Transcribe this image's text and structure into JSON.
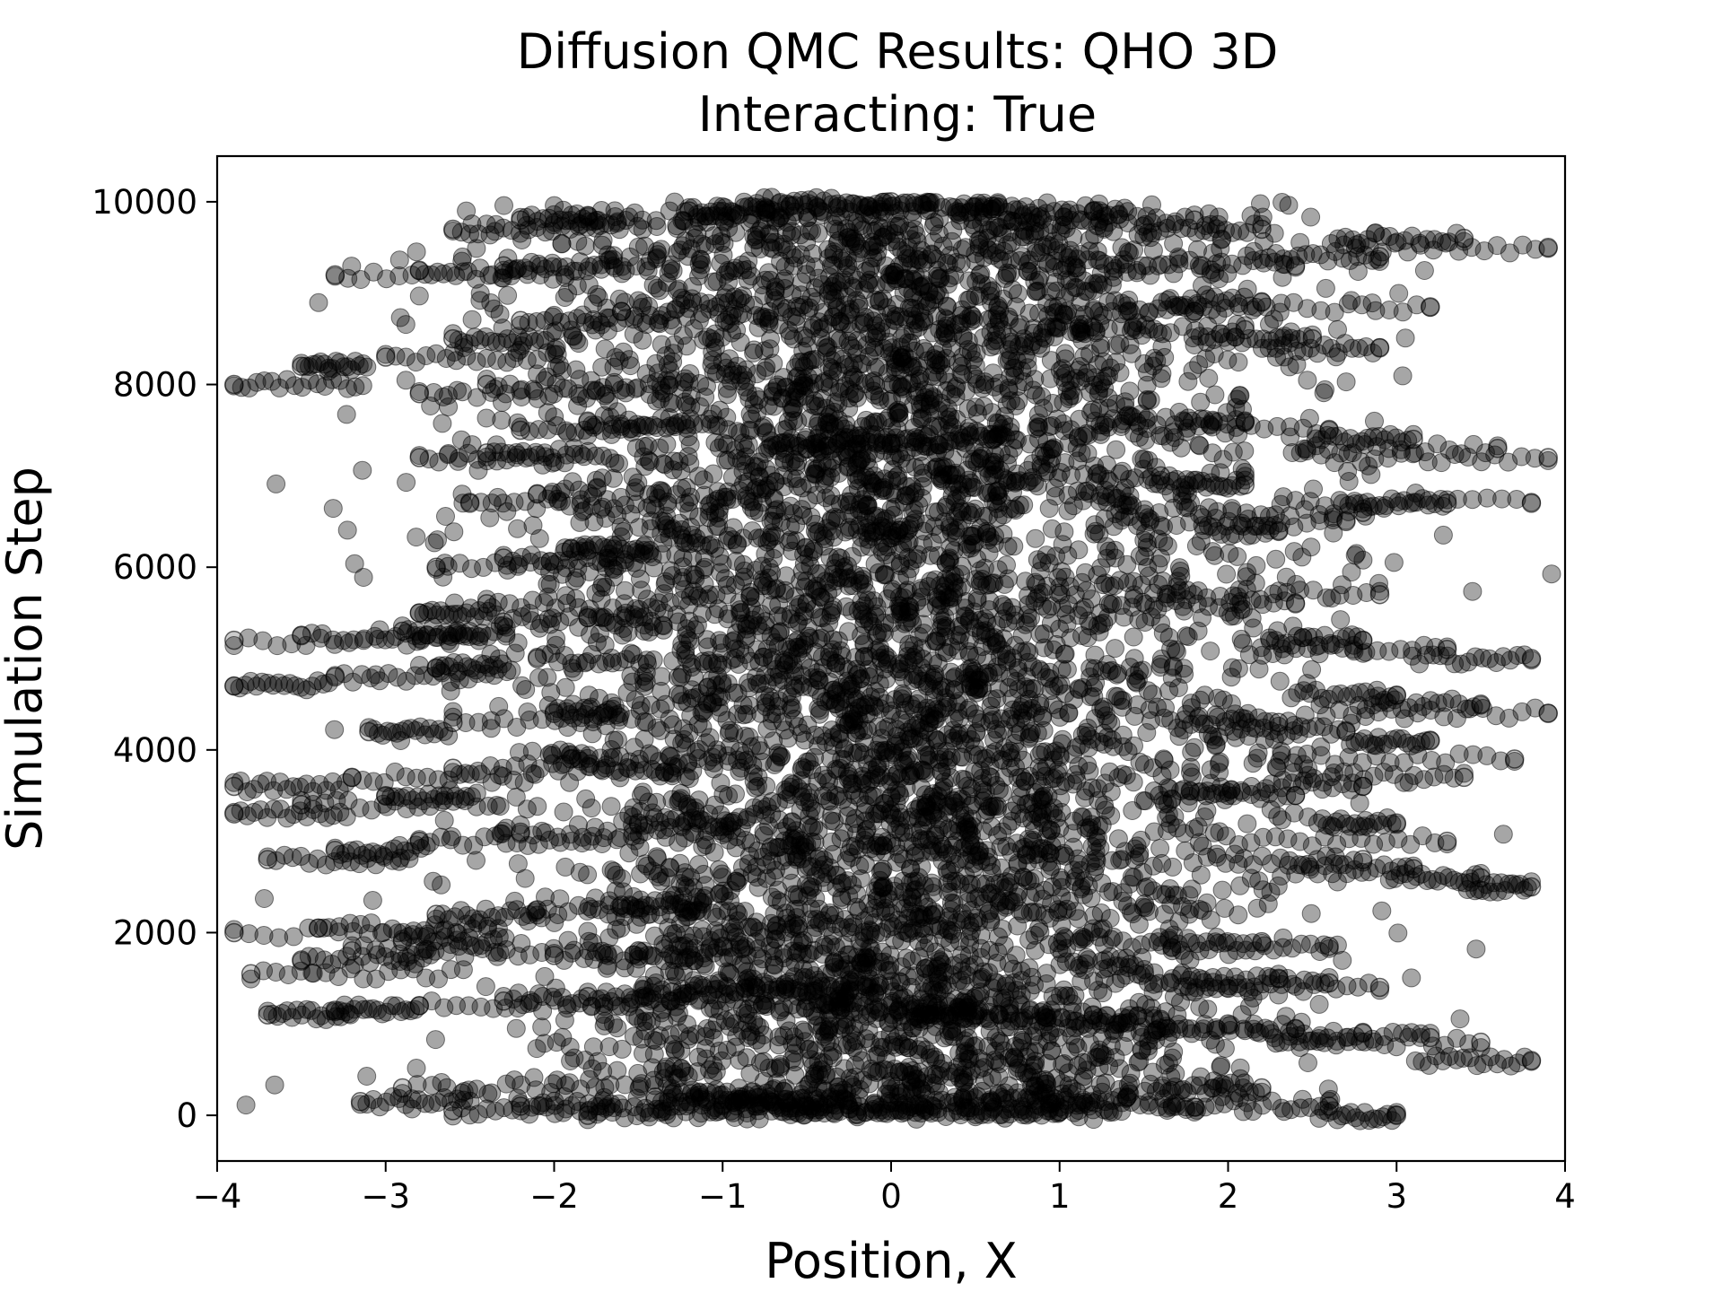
{
  "chart_data": {
    "type": "scatter",
    "title": "Diffusion QMC Results: QHO 3D",
    "subtitle": "Interacting: True",
    "xlabel": "Position, X",
    "ylabel": "Simulation Step",
    "xlim": [
      -4,
      4
    ],
    "ylim": [
      -500,
      10500
    ],
    "xticks": [
      -4,
      -3,
      -2,
      -1,
      0,
      1,
      2,
      3,
      4
    ],
    "xtick_labels": [
      "−4",
      "−3",
      "−2",
      "−1",
      "0",
      "1",
      "2",
      "3",
      "4"
    ],
    "yticks": [
      0,
      2000,
      4000,
      6000,
      8000,
      10000
    ],
    "ytick_labels": [
      "0",
      "2000",
      "4000",
      "6000",
      "8000",
      "10000"
    ],
    "grid": false,
    "marker": "circle",
    "marker_color": "#000000",
    "marker_alpha": 0.2,
    "series": [
      {
        "points": [
          [
            -3.15,
            150
          ],
          [
            -2.9,
            300
          ],
          [
            -2.6,
            50
          ],
          [
            -2.2,
            100
          ],
          [
            -1.8,
            0
          ],
          [
            -1.4,
            200
          ],
          [
            -1.0,
            120
          ],
          [
            -0.6,
            80
          ],
          [
            -0.2,
            10
          ],
          [
            0.2,
            60
          ],
          [
            0.6,
            150
          ],
          [
            1.0,
            40
          ],
          [
            1.4,
            200
          ],
          [
            1.8,
            90
          ],
          [
            2.2,
            300
          ],
          [
            2.6,
            100
          ],
          [
            3.0,
            0
          ],
          [
            3.8,
            600
          ],
          [
            3.5,
            800
          ],
          [
            3.2,
            850
          ],
          [
            2.8,
            900
          ],
          [
            2.4,
            950
          ],
          [
            2.0,
            1000
          ],
          [
            1.6,
            1050
          ],
          [
            1.2,
            1100
          ],
          [
            -3.7,
            1100
          ],
          [
            -3.3,
            1150
          ],
          [
            -2.8,
            1200
          ],
          [
            -2.3,
            1250
          ],
          [
            -1.8,
            1300
          ],
          [
            -1.3,
            1350
          ],
          [
            -0.8,
            1400
          ],
          [
            2.9,
            1400
          ],
          [
            2.6,
            1450
          ],
          [
            2.3,
            1500
          ],
          [
            -3.8,
            1550
          ],
          [
            -3.5,
            1700
          ],
          [
            -3.2,
            1800
          ],
          [
            -2.9,
            1900
          ],
          [
            -2.0,
            1750
          ],
          [
            -1.5,
            1800
          ],
          [
            2.6,
            1850
          ],
          [
            2.2,
            1900
          ],
          [
            -3.9,
            2000
          ],
          [
            -3.4,
            2050
          ],
          [
            -2.7,
            2200
          ],
          [
            -2.1,
            2250
          ],
          [
            -1.6,
            2300
          ],
          [
            3.8,
            2500
          ],
          [
            3.5,
            2600
          ],
          [
            3.1,
            2700
          ],
          [
            2.8,
            2800
          ],
          [
            -3.7,
            2800
          ],
          [
            -3.3,
            2900
          ],
          [
            -2.8,
            3000
          ],
          [
            -2.2,
            3100
          ],
          [
            -1.5,
            3200
          ],
          [
            3.3,
            3000
          ],
          [
            3.0,
            3200
          ],
          [
            -3.9,
            3300
          ],
          [
            -3.5,
            3400
          ],
          [
            -3.0,
            3500
          ],
          [
            2.4,
            3500
          ],
          [
            2.8,
            3600
          ],
          [
            3.4,
            3700
          ],
          [
            -3.9,
            3600
          ],
          [
            -3.2,
            3700
          ],
          [
            -2.6,
            3800
          ],
          [
            -1.9,
            3900
          ],
          [
            3.7,
            3900
          ],
          [
            3.2,
            4100
          ],
          [
            2.7,
            4200
          ],
          [
            2.3,
            4300
          ],
          [
            -3.1,
            4200
          ],
          [
            -2.6,
            4300
          ],
          [
            -2.0,
            4400
          ],
          [
            3.9,
            4400
          ],
          [
            3.5,
            4500
          ],
          [
            3.0,
            4600
          ],
          [
            -3.9,
            4700
          ],
          [
            -3.3,
            4800
          ],
          [
            -2.7,
            4900
          ],
          [
            -2.1,
            5000
          ],
          [
            3.8,
            5000
          ],
          [
            3.3,
            5100
          ],
          [
            2.8,
            5200
          ],
          [
            -3.9,
            5200
          ],
          [
            -3.5,
            5250
          ],
          [
            -2.9,
            5300
          ],
          [
            -2.3,
            5400
          ],
          [
            -1.8,
            5450
          ],
          [
            2.4,
            5600
          ],
          [
            2.9,
            5700
          ],
          [
            -2.8,
            5500
          ],
          [
            -2.4,
            5600
          ],
          [
            -2.7,
            6000
          ],
          [
            -2.3,
            6100
          ],
          [
            -1.9,
            6200
          ],
          [
            2.3,
            6400
          ],
          [
            2.7,
            6500
          ],
          [
            -2.5,
            6700
          ],
          [
            -2.1,
            6800
          ],
          [
            2.8,
            6600
          ],
          [
            3.3,
            6700
          ],
          [
            3.8,
            6700
          ],
          [
            2.1,
            6900
          ],
          [
            1.6,
            7000
          ],
          [
            -2.8,
            7200
          ],
          [
            -2.4,
            7250
          ],
          [
            3.9,
            7200
          ],
          [
            3.6,
            7300
          ],
          [
            3.1,
            7400
          ],
          [
            2.6,
            7500
          ],
          [
            2.1,
            7600
          ],
          [
            -2.2,
            7500
          ],
          [
            -1.8,
            7600
          ],
          [
            -2.8,
            7900
          ],
          [
            -2.4,
            8000
          ],
          [
            2.9,
            8400
          ],
          [
            2.5,
            8500
          ],
          [
            2.1,
            8600
          ],
          [
            -3.9,
            8000
          ],
          [
            -3.5,
            8200
          ],
          [
            -3.0,
            8300
          ],
          [
            -2.6,
            8500
          ],
          [
            -2.2,
            8700
          ],
          [
            -1.6,
            8800
          ],
          [
            1.8,
            8800
          ],
          [
            2.2,
            8900
          ],
          [
            3.2,
            8850
          ],
          [
            -3.3,
            9200
          ],
          [
            -2.8,
            9250
          ],
          [
            -2.3,
            9300
          ],
          [
            3.9,
            9500
          ],
          [
            3.4,
            9600
          ],
          [
            2.9,
            9400
          ],
          [
            2.4,
            9300
          ],
          [
            -2.6,
            9700
          ],
          [
            -2.2,
            9800
          ],
          [
            -1.8,
            9850
          ],
          [
            -1.2,
            9900
          ],
          [
            -0.6,
            9950
          ],
          [
            0.0,
            10000
          ],
          [
            0.6,
            9950
          ],
          [
            1.2,
            9900
          ],
          [
            1.8,
            9800
          ],
          [
            2.2,
            9700
          ],
          [
            -0.5,
            7300
          ],
          [
            0.0,
            7350
          ],
          [
            0.6,
            7400
          ],
          [
            -0.3,
            1150
          ],
          [
            0.5,
            1100
          ]
        ]
      }
    ]
  }
}
